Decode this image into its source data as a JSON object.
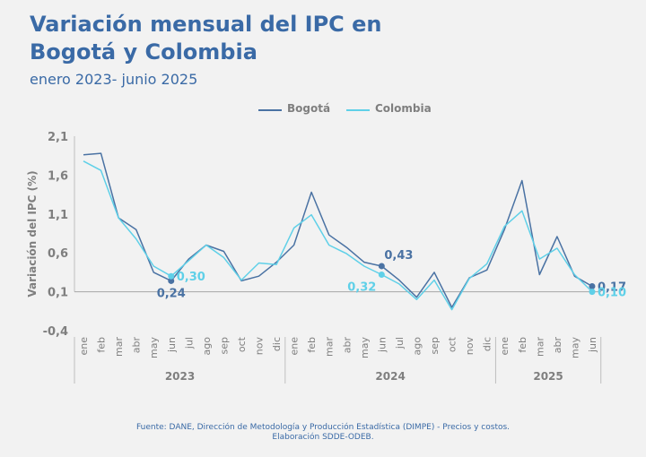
{
  "header": {
    "title_line1": "Variación mensual del IPC en",
    "title_line2": "Bogotá y Colombia",
    "subtitle": "enero 2023- junio 2025"
  },
  "footer": {
    "line1": "Fuente: DANE, Dirección de Metodología y Producción Estadística (DIMPE) - Precios y costos.",
    "line2": "Elaboración SDDE-ODEB."
  },
  "colors": {
    "title": "#3a6aa6",
    "bogota": "#4a72a3",
    "colombia": "#5fd0e8",
    "axis_text": "#7f7f7f",
    "baseline": "#a6a6a6"
  },
  "chart_data": {
    "type": "line",
    "title": "Variación mensual del IPC en Bogotá y Colombia",
    "subtitle": "enero 2023- junio 2025",
    "ylabel": "Variación del IPC (%)",
    "ylim": [
      -0.4,
      2.1
    ],
    "yticks": [
      "2,1",
      "1,6",
      "1,1",
      "0,6",
      "0,1",
      "-0,4"
    ],
    "ytick_values": [
      2.1,
      1.6,
      1.1,
      0.6,
      0.1,
      -0.4
    ],
    "legend_position": "top",
    "grid": false,
    "categories": [
      "ene",
      "feb",
      "mar",
      "abr",
      "may",
      "jun",
      "jul",
      "ago",
      "sep",
      "oct",
      "nov",
      "dic",
      "ene",
      "feb",
      "mar",
      "abr",
      "may",
      "jun",
      "jul",
      "ago",
      "sep",
      "oct",
      "nov",
      "dic",
      "ene",
      "feb",
      "mar",
      "abr",
      "may",
      "jun"
    ],
    "years": [
      {
        "label": "2023",
        "start": 0,
        "end": 11
      },
      {
        "label": "2024",
        "start": 12,
        "end": 23
      },
      {
        "label": "2025",
        "start": 24,
        "end": 29
      }
    ],
    "series": [
      {
        "name": "Bogotá",
        "color": "#4a72a3",
        "values": [
          1.86,
          1.88,
          1.05,
          0.9,
          0.35,
          0.24,
          0.52,
          0.7,
          0.62,
          0.24,
          0.3,
          0.48,
          0.7,
          1.38,
          0.83,
          0.67,
          0.48,
          0.43,
          0.25,
          0.03,
          0.35,
          -0.1,
          0.28,
          0.38,
          0.9,
          1.53,
          0.32,
          0.81,
          0.3,
          0.17
        ],
        "labels": [
          {
            "index": 5,
            "text": "0,24",
            "position": "below"
          },
          {
            "index": 17,
            "text": "0,43",
            "position": "above"
          },
          {
            "index": 29,
            "text": "0,17",
            "position": "right"
          }
        ]
      },
      {
        "name": "Colombia",
        "color": "#5fd0e8",
        "values": [
          1.78,
          1.66,
          1.05,
          0.78,
          0.43,
          0.3,
          0.5,
          0.7,
          0.54,
          0.25,
          0.47,
          0.45,
          0.92,
          1.09,
          0.7,
          0.59,
          0.43,
          0.32,
          0.2,
          0.0,
          0.25,
          -0.13,
          0.27,
          0.46,
          0.94,
          1.14,
          0.52,
          0.66,
          0.32,
          0.1
        ],
        "labels": [
          {
            "index": 5,
            "text": "0,30",
            "position": "right"
          },
          {
            "index": 17,
            "text": "0,32",
            "position": "left"
          },
          {
            "index": 29,
            "text": "0,10",
            "position": "right"
          }
        ]
      }
    ]
  }
}
